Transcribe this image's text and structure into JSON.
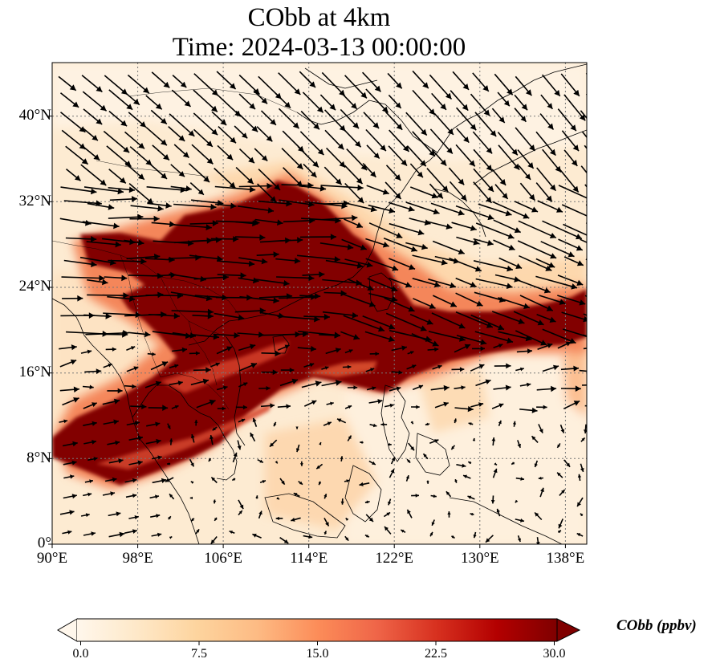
{
  "title": {
    "line1": "CObb at 4km",
    "line2": "Time: 2024-03-13 00:00:00"
  },
  "map": {
    "variable": "CObb",
    "height": "4km",
    "time": "2024-03-13 00:00:00",
    "projection": "PlateCarree",
    "lon_range": [
      90,
      140
    ],
    "lat_range": [
      0,
      45
    ],
    "gridlines": "dotted",
    "overlay": "wind vectors",
    "lat_ticks": [
      "0°",
      "8°N",
      "16°N",
      "24°N",
      "32°N",
      "40°N"
    ],
    "lon_ticks": [
      "90°E",
      "98°E",
      "106°E",
      "114°E",
      "122°E",
      "130°E",
      "138°E"
    ],
    "lat_values": [
      0,
      8,
      16,
      24,
      32,
      40
    ],
    "lon_values": [
      90,
      98,
      106,
      114,
      122,
      130,
      138
    ]
  },
  "colorbar": {
    "label": "CObb (ppbv)",
    "ticks": [
      "0.0",
      "7.5",
      "15.0",
      "22.5",
      "30.0"
    ],
    "tick_values": [
      0,
      7.5,
      15,
      22.5,
      30
    ],
    "range": [
      0,
      30
    ],
    "extend": "both",
    "colormap": "OrRd",
    "colors": [
      "#fff7ec",
      "#fee8c8",
      "#fdd49e",
      "#fdbb84",
      "#fc8d59",
      "#ef6548",
      "#d7301f",
      "#b30000",
      "#7f0000"
    ]
  }
}
